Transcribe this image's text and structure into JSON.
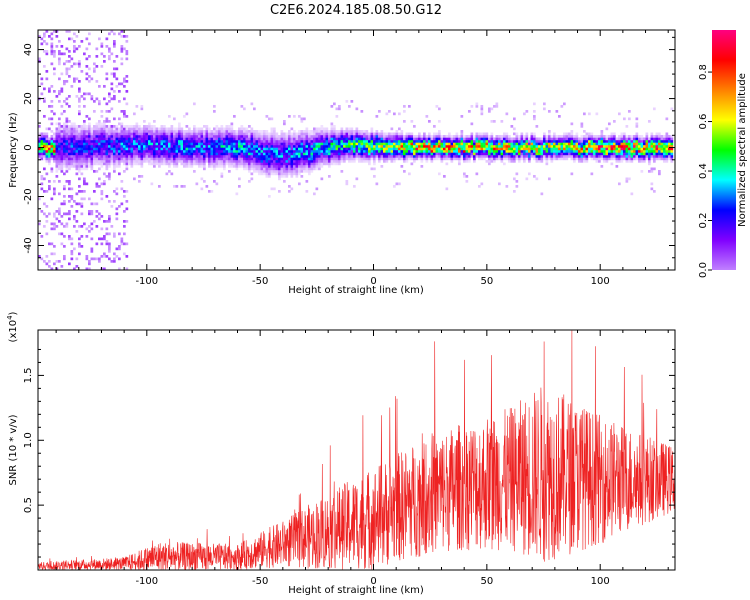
{
  "title": "C2E6.2024.185.08.50.G12",
  "chart_data": [
    {
      "type": "heatmap",
      "xlabel": "Height of straight line (km)",
      "ylabel": "Frequency (Hz)",
      "xlim": [
        -148,
        133
      ],
      "ylim": [
        -50,
        48
      ],
      "xticks": [
        "-100",
        "-50",
        "0",
        "50",
        "100"
      ],
      "yticks": [
        "-40",
        "-20",
        "0",
        "20",
        "40"
      ],
      "colorbar": {
        "label": "Normalized spectral amplitude",
        "range": [
          0,
          0.97
        ],
        "ticks": [
          "0.0",
          "0.2",
          "0.4",
          "0.6",
          "0.8"
        ],
        "colors": [
          "#ffffff",
          "#c080ff",
          "#8000ff",
          "#0000ff",
          "#00ffff",
          "#00ff00",
          "#ffff00",
          "#ff8000",
          "#ff0000",
          "#ff0080"
        ]
      },
      "ridge": {
        "description_values": [
          {
            "x": -140,
            "center": 0,
            "halfwidth": 6,
            "peak": 0.35
          },
          {
            "x": -100,
            "center": 1,
            "halfwidth": 5,
            "peak": 0.4
          },
          {
            "x": -60,
            "center": 0,
            "halfwidth": 5,
            "peak": 0.45
          },
          {
            "x": -40,
            "center": -3,
            "halfwidth": 6,
            "peak": 0.4
          },
          {
            "x": -10,
            "center": 1,
            "halfwidth": 4,
            "peak": 0.55
          },
          {
            "x": 20,
            "center": 0,
            "halfwidth": 3,
            "peak": 0.85
          },
          {
            "x": 50,
            "center": 0,
            "halfwidth": 3,
            "peak": 0.8
          },
          {
            "x": 80,
            "center": 0,
            "halfwidth": 3,
            "peak": 0.7
          },
          {
            "x": 110,
            "center": 0,
            "halfwidth": 3,
            "peak": 0.9
          },
          {
            "x": 133,
            "center": 0,
            "halfwidth": 3,
            "peak": 0.85
          }
        ]
      }
    },
    {
      "type": "line",
      "xlabel": "Height of straight line (km)",
      "ylabel": "SNR (10 * v/v)",
      "scale_label": "(x10",
      "scale_exp": "4",
      "scale_close": ")",
      "xlim": [
        -148,
        133
      ],
      "ylim": [
        0,
        1.85
      ],
      "xticks": [
        "-100",
        "-50",
        "0",
        "50",
        "100"
      ],
      "yticks": [
        "0.5",
        "1.0",
        "1.5"
      ],
      "color": "#ee2222",
      "envelope": [
        {
          "x": -148,
          "mean": 0.03,
          "amp": 0.03
        },
        {
          "x": -110,
          "mean": 0.05,
          "amp": 0.05
        },
        {
          "x": -95,
          "mean": 0.1,
          "amp": 0.12
        },
        {
          "x": -60,
          "mean": 0.1,
          "amp": 0.1
        },
        {
          "x": -40,
          "mean": 0.2,
          "amp": 0.18
        },
        {
          "x": -20,
          "mean": 0.3,
          "amp": 0.3
        },
        {
          "x": 0,
          "mean": 0.4,
          "amp": 0.4
        },
        {
          "x": 20,
          "mean": 0.55,
          "amp": 0.45
        },
        {
          "x": 40,
          "mean": 0.65,
          "amp": 0.5
        },
        {
          "x": 60,
          "mean": 0.7,
          "amp": 0.55
        },
        {
          "x": 75,
          "mean": 0.75,
          "amp": 0.7
        },
        {
          "x": 100,
          "mean": 0.7,
          "amp": 0.5
        },
        {
          "x": 133,
          "mean": 0.7,
          "amp": 0.25
        }
      ]
    }
  ]
}
